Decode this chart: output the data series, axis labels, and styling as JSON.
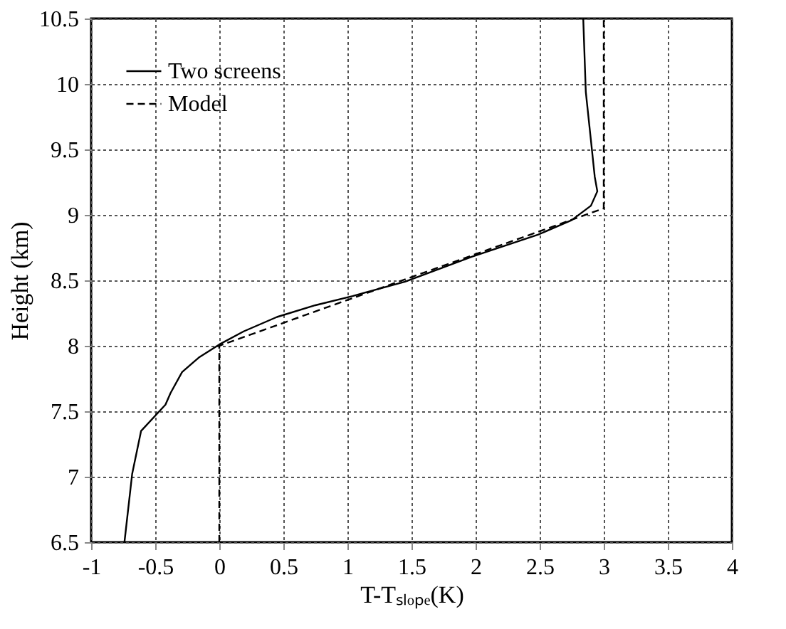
{
  "chart_data": {
    "type": "line",
    "xlabel": "T-Tₛₗₒₚₑ(K)",
    "ylabel": "Height (km)",
    "xlim": [
      -1,
      4
    ],
    "ylim": [
      6.5,
      10.5
    ],
    "xticks": [
      -1,
      -0.5,
      0,
      0.5,
      1,
      1.5,
      2,
      2.5,
      3,
      3.5,
      4
    ],
    "yticks": [
      6.5,
      7,
      7.5,
      8,
      8.5,
      9,
      9.5,
      10,
      10.5
    ],
    "grid": true,
    "legend": "top left",
    "marker": "none",
    "series": [
      {
        "name": "Two screens",
        "color": "#000000",
        "line_style": "solid",
        "x": [
          -0.74,
          -0.68,
          -0.61,
          -0.42,
          -0.38,
          -0.29,
          -0.16,
          0.0,
          0.19,
          0.45,
          0.75,
          1.04,
          1.45,
          1.97,
          2.49,
          2.75,
          2.9,
          2.95,
          2.93,
          2.9,
          2.86,
          2.84
        ],
        "values": [
          6.5,
          7.02,
          7.35,
          7.55,
          7.64,
          7.8,
          7.91,
          8.01,
          8.11,
          8.22,
          8.31,
          8.38,
          8.49,
          8.68,
          8.85,
          8.96,
          9.07,
          9.18,
          9.29,
          9.57,
          9.94,
          10.5
        ]
      },
      {
        "name": "Model",
        "color": "#000000",
        "line_style": "dashed",
        "x": [
          0,
          0,
          3,
          3
        ],
        "values": [
          6.5,
          8.0,
          9.05,
          10.5
        ]
      }
    ]
  }
}
